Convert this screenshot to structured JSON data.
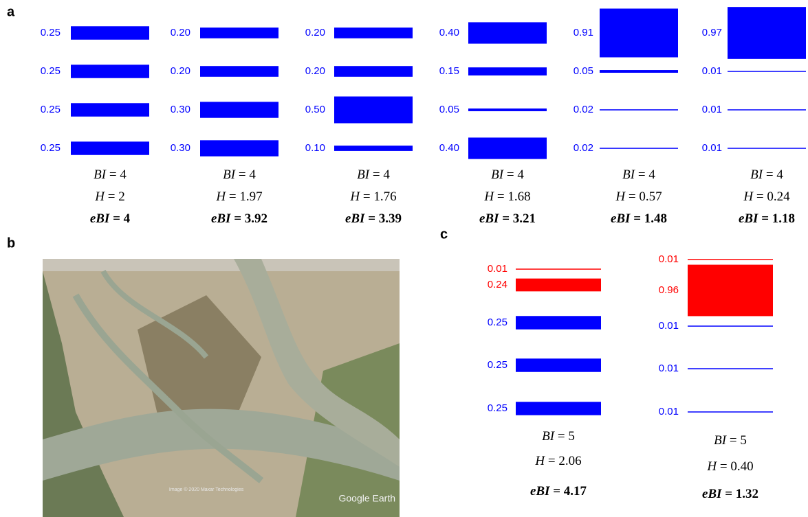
{
  "stat_labels": {
    "bi": "BI",
    "h": "H",
    "ebi": "eBI",
    "equals": "="
  },
  "panel_a": {
    "label": "a",
    "columns": [
      {
        "values": [
          0.25,
          0.25,
          0.25,
          0.25
        ],
        "value_labels": [
          "0.25",
          "0.25",
          "0.25",
          "0.25"
        ],
        "colors": [
          "#0000ff",
          "#0000ff",
          "#0000ff",
          "#0000ff"
        ],
        "bi": "4",
        "h": "2",
        "ebi": "4"
      },
      {
        "values": [
          0.2,
          0.2,
          0.3,
          0.3
        ],
        "value_labels": [
          "0.20",
          "0.20",
          "0.30",
          "0.30"
        ],
        "colors": [
          "#0000ff",
          "#0000ff",
          "#0000ff",
          "#0000ff"
        ],
        "bi": "4",
        "h": "1.97",
        "ebi": "3.92"
      },
      {
        "values": [
          0.2,
          0.2,
          0.5,
          0.1
        ],
        "value_labels": [
          "0.20",
          "0.20",
          "0.50",
          "0.10"
        ],
        "colors": [
          "#0000ff",
          "#0000ff",
          "#0000ff",
          "#0000ff"
        ],
        "bi": "4",
        "h": "1.76",
        "ebi": "3.39"
      },
      {
        "values": [
          0.4,
          0.15,
          0.05,
          0.4
        ],
        "value_labels": [
          "0.40",
          "0.15",
          "0.05",
          "0.40"
        ],
        "colors": [
          "#0000ff",
          "#0000ff",
          "#0000ff",
          "#0000ff"
        ],
        "bi": "4",
        "h": "1.68",
        "ebi": "3.21"
      },
      {
        "values": [
          0.91,
          0.05,
          0.02,
          0.02
        ],
        "value_labels": [
          "0.91",
          "0.05",
          "0.02",
          "0.02"
        ],
        "colors": [
          "#0000ff",
          "#0000ff",
          "#0000ff",
          "#0000ff"
        ],
        "bi": "4",
        "h": "0.57",
        "ebi": "1.48"
      },
      {
        "values": [
          0.97,
          0.01,
          0.01,
          0.01
        ],
        "value_labels": [
          "0.97",
          "0.01",
          "0.01",
          "0.01"
        ],
        "colors": [
          "#0000ff",
          "#0000ff",
          "#0000ff",
          "#0000ff"
        ],
        "bi": "4",
        "h": "0.24",
        "ebi": "1.18"
      }
    ]
  },
  "panel_b": {
    "label": "b",
    "credit": "Google Earth",
    "copyright": "Image © 2020 Maxar Technologies"
  },
  "panel_c": {
    "label": "c",
    "columns": [
      {
        "values": [
          0.01,
          0.24,
          0.25,
          0.25,
          0.25
        ],
        "value_labels": [
          "0.01",
          "0.24",
          "0.25",
          "0.25",
          "0.25"
        ],
        "colors": [
          "#ff0000",
          "#ff0000",
          "#0000ff",
          "#0000ff",
          "#0000ff"
        ],
        "bi": "5",
        "h": "2.06",
        "ebi": "4.17"
      },
      {
        "values": [
          0.01,
          0.96,
          0.01,
          0.01,
          0.01
        ],
        "value_labels": [
          "0.01",
          "0.96",
          "0.01",
          "0.01",
          "0.01"
        ],
        "colors": [
          "#ff0000",
          "#ff0000",
          "#0000ff",
          "#0000ff",
          "#0000ff"
        ],
        "bi": "5",
        "h": "0.40",
        "ebi": "1.32"
      }
    ]
  }
}
